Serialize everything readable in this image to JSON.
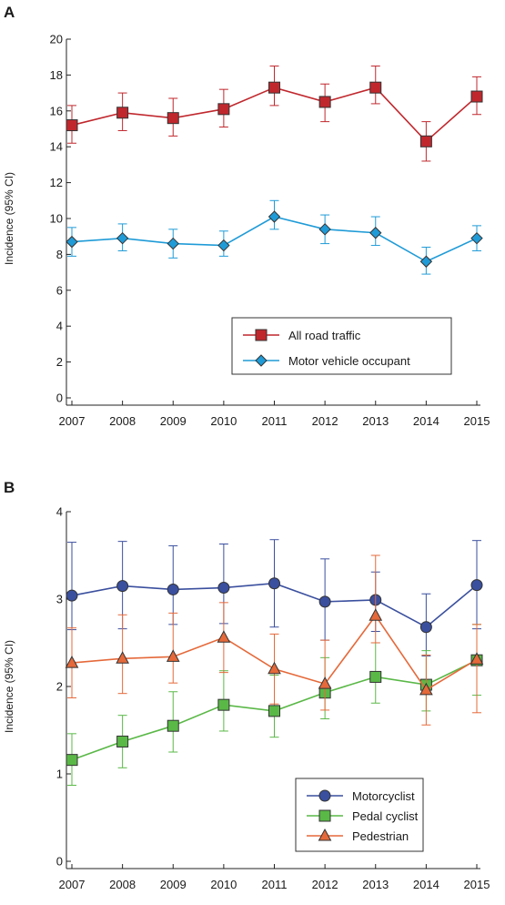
{
  "chart_data": [
    {
      "type": "line",
      "panel_label": "A",
      "ylabel": "Incidence (95% CI)",
      "xlabel": "",
      "categories": [
        "2007",
        "2008",
        "2009",
        "2010",
        "2011",
        "2012",
        "2013",
        "2014",
        "2015"
      ],
      "ylim": [
        0,
        20
      ],
      "yticks": [
        0,
        2,
        4,
        6,
        8,
        10,
        12,
        14,
        16,
        18,
        20
      ],
      "grid": false,
      "legend_position": "lower-right",
      "series": [
        {
          "name": "All road traffic",
          "color": "#c0272d",
          "marker": "square",
          "values": [
            15.2,
            15.9,
            15.6,
            16.1,
            17.3,
            16.5,
            17.3,
            14.3,
            16.8
          ],
          "ci_low": [
            14.2,
            14.9,
            14.6,
            15.1,
            16.3,
            15.4,
            16.4,
            13.2,
            15.8
          ],
          "ci_high": [
            16.3,
            17.0,
            16.7,
            17.2,
            18.5,
            17.5,
            18.5,
            15.4,
            17.9
          ]
        },
        {
          "name": "Motor vehicle occupant",
          "color": "#1f9bd7",
          "marker": "diamond",
          "values": [
            8.7,
            8.9,
            8.6,
            8.5,
            10.1,
            9.4,
            9.2,
            7.6,
            8.9
          ],
          "ci_low": [
            7.9,
            8.2,
            7.8,
            7.9,
            9.4,
            8.6,
            8.5,
            6.9,
            8.2
          ],
          "ci_high": [
            9.5,
            9.7,
            9.4,
            9.3,
            11.0,
            10.2,
            10.1,
            8.4,
            9.6
          ]
        }
      ]
    },
    {
      "type": "line",
      "panel_label": "B",
      "ylabel": "Incidence (95% CI)",
      "xlabel": "",
      "categories": [
        "2007",
        "2008",
        "2009",
        "2010",
        "2011",
        "2012",
        "2013",
        "2014",
        "2015"
      ],
      "ylim": [
        0,
        4
      ],
      "yticks": [
        0,
        1,
        2,
        3,
        4
      ],
      "grid": false,
      "legend_position": "lower-right",
      "series": [
        {
          "name": "Motorcyclist",
          "color": "#3a4f9e",
          "marker": "circle",
          "values": [
            3.04,
            3.15,
            3.11,
            3.13,
            3.18,
            2.97,
            2.99,
            2.68,
            3.16
          ],
          "ci_low": [
            2.65,
            2.66,
            2.71,
            2.72,
            2.68,
            2.53,
            2.63,
            2.35,
            2.66
          ],
          "ci_high": [
            3.65,
            3.66,
            3.61,
            3.63,
            3.68,
            3.46,
            3.31,
            3.06,
            3.67
          ]
        },
        {
          "name": "Pedal cyclist",
          "color": "#5ab847",
          "marker": "square",
          "values": [
            1.16,
            1.37,
            1.55,
            1.79,
            1.72,
            1.93,
            2.11,
            2.02,
            2.3
          ],
          "ci_low": [
            0.87,
            1.07,
            1.25,
            1.49,
            1.42,
            1.63,
            1.81,
            1.72,
            1.9
          ],
          "ci_high": [
            1.46,
            1.67,
            1.94,
            2.18,
            2.13,
            2.33,
            2.5,
            2.41,
            2.71
          ]
        },
        {
          "name": "Pedestrian",
          "color": "#e5693a",
          "marker": "triangle",
          "values": [
            2.27,
            2.32,
            2.34,
            2.56,
            2.2,
            2.03,
            2.81,
            1.96,
            2.31
          ],
          "ci_low": [
            1.87,
            1.92,
            2.04,
            2.16,
            1.8,
            1.73,
            2.5,
            1.56,
            1.7
          ],
          "ci_high": [
            2.67,
            2.82,
            2.84,
            2.96,
            2.6,
            2.53,
            3.5,
            2.36,
            2.71
          ]
        }
      ]
    }
  ]
}
